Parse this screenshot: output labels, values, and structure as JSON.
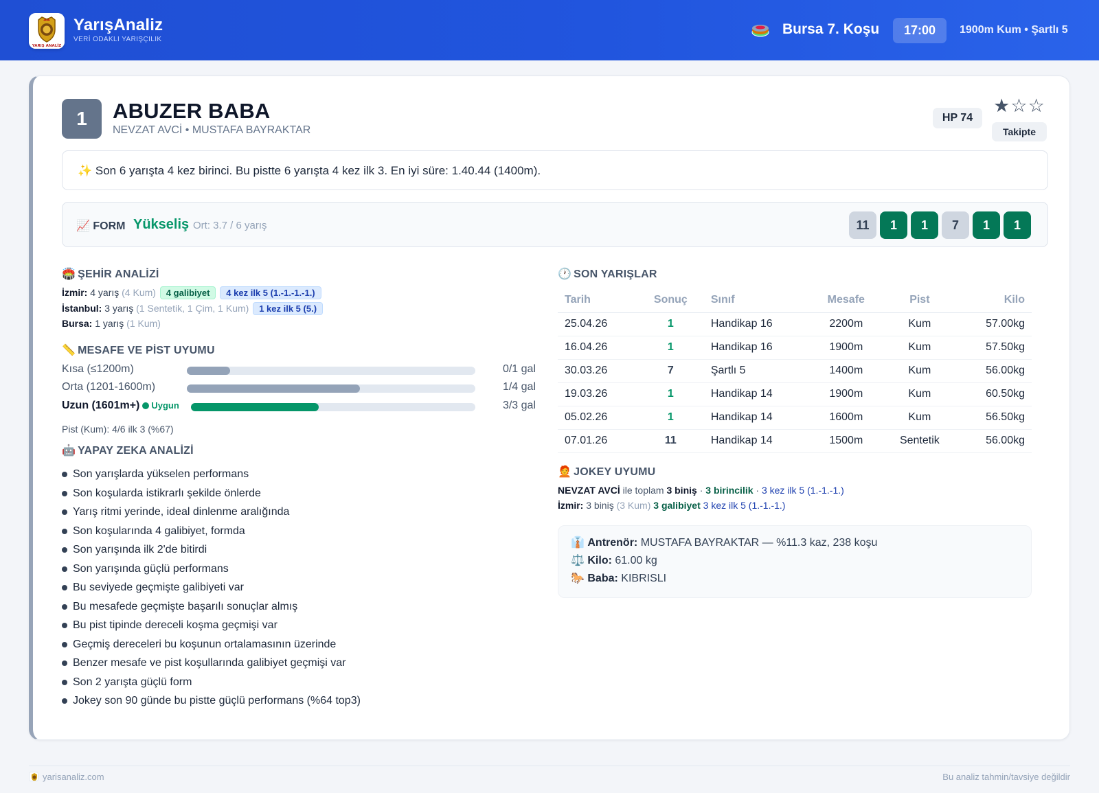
{
  "header": {
    "brand_title": "YarışAnaliz",
    "brand_subtitle": "VERİ ODAKLI YARIŞÇILIK",
    "logo_caption": "YARIŞ ANALİZ",
    "race_title": "Bursa 7. Koşu",
    "race_time": "17:00",
    "race_info": "1900m Kum • Şartlı 5"
  },
  "horse": {
    "number": "1",
    "name": "ABUZER BABA",
    "subtitle": "NEVZAT AVCİ • MUSTAFA BAYRAKTAR",
    "hp": "HP 74",
    "rating_stars": 1,
    "rating_max": 3,
    "follow_label": "Takipte"
  },
  "summary": {
    "icon": "sparkles-icon",
    "text": "✨ Son 6 yarışta 4 kez birinci. Bu pistte 6 yarışta 4 kez ilk 3. En iyi süre: 1.40.44 (1400m)."
  },
  "form": {
    "label": "📈 FORM",
    "trend": "Yükseliş",
    "average": "Ort: 3.7 / 6 yarış",
    "results": [
      "11",
      "1",
      "1",
      "7",
      "1",
      "1"
    ],
    "colors": {
      "win": "#047857",
      "other": "#cfd6e0"
    }
  },
  "city_analysis": {
    "title": "ŞEHİR ANALİZİ",
    "icon": "🏟️",
    "izmir": {
      "city": "İzmir:",
      "count": "4 yarış",
      "detail": "(4 Kum)",
      "tag1": "4 galibiyet",
      "tag2": "4 kez ilk 5 (1.-1.-1.-1.)"
    },
    "istanbul": {
      "city": "İstanbul:",
      "count": "3 yarış",
      "detail": "(1 Sentetik, 1 Çim, 1 Kum)",
      "tag1": "1 kez ilk 5 (5.)"
    },
    "bursa": {
      "city": "Bursa:",
      "count": "1 yarış",
      "detail": "(1 Kum)"
    }
  },
  "distance_fit": {
    "title": "MESAFE VE PİST UYUMU",
    "icon": "📏",
    "rows": [
      {
        "label": "Kısa (≤1200m)",
        "value": "0/1 gal",
        "fill": 0.15
      },
      {
        "label": "Orta (1201-1600m)",
        "value": "1/4 gal",
        "fill": 0.6
      },
      {
        "label": "Uzun (1601m+)",
        "value": "3/3 gal",
        "fill": 0.45,
        "badge": "Uygun"
      }
    ],
    "pist": "Pist (Kum): 4/6 ilk 3 (%67)"
  },
  "ai_analysis": {
    "title": "YAPAY ZEKA ANALİZİ",
    "icon": "🤖",
    "items": [
      "Son yarışlarda yükselen performans",
      "Son koşularda istikrarlı şekilde önlerde",
      "Yarış ritmi yerinde, ideal dinlenme aralığında",
      "Son koşularında 4 galibiyet, formda",
      "Son yarışında ilk 2'de bitirdi",
      "Son yarışında güçlü performans",
      "Bu seviyede geçmişte galibiyeti var",
      "Bu mesafede geçmişte başarılı sonuçlar almış",
      "Bu pist tipinde dereceli koşma geçmişi var",
      "Geçmiş dereceleri bu koşunun ortalamasının üzerinde",
      "Benzer mesafe ve pist koşullarında galibiyet geçmişi var",
      "Son 2 yarışta güçlü form",
      "Jokey son 90 günde bu pistte güçlü performans (%64 top3)"
    ]
  },
  "recent_races": {
    "title": "SON YARIŞLAR",
    "icon": "🕐",
    "columns": [
      "Tarih",
      "Sonuç",
      "Sınıf",
      "Mesafe",
      "Pist",
      "Kilo"
    ],
    "rows": [
      [
        "25.04.26",
        "1",
        "Handikap 16",
        "2200m",
        "Kum",
        "57.00kg"
      ],
      [
        "16.04.26",
        "1",
        "Handikap 16",
        "1900m",
        "Kum",
        "57.50kg"
      ],
      [
        "30.03.26",
        "7",
        "Şartlı 5",
        "1400m",
        "Kum",
        "56.00kg"
      ],
      [
        "19.03.26",
        "1",
        "Handikap 14",
        "1900m",
        "Kum",
        "60.50kg"
      ],
      [
        "05.02.26",
        "1",
        "Handikap 14",
        "1600m",
        "Kum",
        "56.50kg"
      ],
      [
        "07.01.26",
        "11",
        "Handikap 14",
        "1500m",
        "Sentetik",
        "56.00kg"
      ]
    ]
  },
  "jockey_fit": {
    "title": "JOKEY UYUMU",
    "icon": "🧑‍🦰",
    "line1": {
      "name": "NEVZAT AVCİ",
      "mid": "ile toplam",
      "rides": "3 biniş",
      "sep": "·",
      "wins": "3 birincilik",
      "top5": "3 kez ilk 5 (1.-1.-1.)"
    },
    "line2": {
      "city": "İzmir:",
      "rides": "3 biniş",
      "detail": "(3 Kum)",
      "wins": "3 galibiyet",
      "top5": "3 kez ilk 5 (1.-1.-1.)"
    }
  },
  "info": {
    "trainer_icon": "👔",
    "trainer_label": "Antrenör:",
    "trainer_value": "MUSTAFA BAYRAKTAR — %11.3 kaz, 238 koşu",
    "weight_icon": "⚖️",
    "weight_label": "Kilo:",
    "weight_value": "61.00 kg",
    "sire_icon": "🐎",
    "sire_label": "Baba:",
    "sire_value": "KIBRISLI"
  },
  "footer": {
    "site": "yarisanaliz.com",
    "disclaimer": "Bu analiz tahmin/tavsiye değildir"
  }
}
